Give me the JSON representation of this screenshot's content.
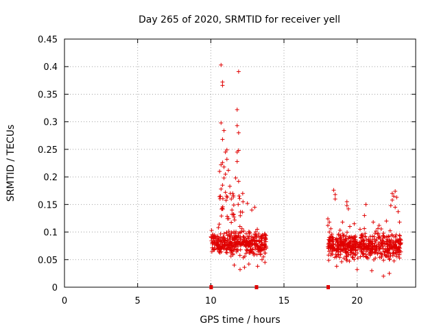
{
  "chart_data": {
    "type": "scatter",
    "title": "Day 265 of 2020, SRMTID for receiver yell",
    "xlabel": "GPS time / hours",
    "ylabel": "SRMTID / TECUs",
    "xlim": [
      0,
      24
    ],
    "ylim": [
      0,
      0.45
    ],
    "x_ticks": [
      0,
      5,
      10,
      15,
      20
    ],
    "y_ticks": [
      0,
      0.05,
      0.1,
      0.15,
      0.2,
      0.25,
      0.3,
      0.35,
      0.4,
      0.45
    ],
    "x_tick_labels": [
      "0",
      "5",
      "10",
      "15",
      "20"
    ],
    "y_tick_labels": [
      "0",
      "0.05",
      "0.1",
      "0.15",
      "0.2",
      "0.25",
      "0.3",
      "0.35",
      "0.4",
      "0.45"
    ],
    "grid": true,
    "marker": "+",
    "color": "#e00000",
    "zero_markers_x": [
      10.0,
      13.1,
      18.0
    ],
    "series": [
      {
        "name": "SRMTID",
        "clusters": [
          {
            "x_start": 10.0,
            "x_end": 13.8,
            "y_base": 0.08,
            "count": 420
          },
          {
            "x_start": 18.0,
            "x_end": 23.0,
            "y_base": 0.075,
            "count": 560
          }
        ],
        "points": [
          [
            10.7,
            0.403
          ],
          [
            11.9,
            0.391
          ],
          [
            10.8,
            0.372
          ],
          [
            10.8,
            0.366
          ],
          [
            11.8,
            0.322
          ],
          [
            10.7,
            0.298
          ],
          [
            11.8,
            0.293
          ],
          [
            10.9,
            0.284
          ],
          [
            11.9,
            0.28
          ],
          [
            10.8,
            0.268
          ],
          [
            11.1,
            0.249
          ],
          [
            11.9,
            0.248
          ],
          [
            11.0,
            0.245
          ],
          [
            11.8,
            0.245
          ],
          [
            11.1,
            0.232
          ],
          [
            10.8,
            0.226
          ],
          [
            11.8,
            0.228
          ],
          [
            10.7,
            0.222
          ],
          [
            10.9,
            0.218
          ],
          [
            11.2,
            0.212
          ],
          [
            10.6,
            0.21
          ],
          [
            11.0,
            0.205
          ],
          [
            10.9,
            0.198
          ],
          [
            11.7,
            0.198
          ],
          [
            11.9,
            0.192
          ],
          [
            10.8,
            0.185
          ],
          [
            11.3,
            0.183
          ],
          [
            10.7,
            0.178
          ],
          [
            11.0,
            0.172
          ],
          [
            11.5,
            0.17
          ],
          [
            18.4,
            0.176
          ],
          [
            18.5,
            0.168
          ],
          [
            18.5,
            0.16
          ],
          [
            19.3,
            0.155
          ],
          [
            22.6,
            0.174
          ],
          [
            22.4,
            0.17
          ],
          [
            22.5,
            0.165
          ],
          [
            22.4,
            0.158
          ],
          [
            22.7,
            0.163
          ],
          [
            19.3,
            0.148
          ],
          [
            19.4,
            0.142
          ],
          [
            20.6,
            0.15
          ],
          [
            22.3,
            0.148
          ],
          [
            22.6,
            0.145
          ],
          [
            22.8,
            0.137
          ],
          [
            12.2,
            0.155
          ],
          [
            12.5,
            0.152
          ],
          [
            13.0,
            0.145
          ],
          [
            12.8,
            0.14
          ],
          [
            11.4,
            0.16
          ],
          [
            18.0,
            0.124
          ],
          [
            18.1,
            0.118
          ],
          [
            18.0,
            0.112
          ],
          [
            18.2,
            0.106
          ],
          [
            18.1,
            0.1
          ],
          [
            19.0,
            0.118
          ],
          [
            19.8,
            0.115
          ],
          [
            20.5,
            0.13
          ],
          [
            21.1,
            0.118
          ],
          [
            21.5,
            0.112
          ],
          [
            22.0,
            0.12
          ],
          [
            22.9,
            0.118
          ],
          [
            21.8,
            0.098
          ],
          [
            20.2,
            0.105
          ],
          [
            19.5,
            0.11
          ],
          [
            13.6,
            0.068
          ],
          [
            13.7,
            0.062
          ],
          [
            13.6,
            0.055
          ],
          [
            13.5,
            0.05
          ],
          [
            13.7,
            0.045
          ],
          [
            12.0,
            0.032
          ],
          [
            12.3,
            0.036
          ],
          [
            11.6,
            0.04
          ],
          [
            12.6,
            0.042
          ],
          [
            13.2,
            0.038
          ],
          [
            21.8,
            0.02
          ],
          [
            22.2,
            0.025
          ],
          [
            21.0,
            0.03
          ],
          [
            20.0,
            0.032
          ],
          [
            18.6,
            0.038
          ]
        ]
      }
    ]
  }
}
